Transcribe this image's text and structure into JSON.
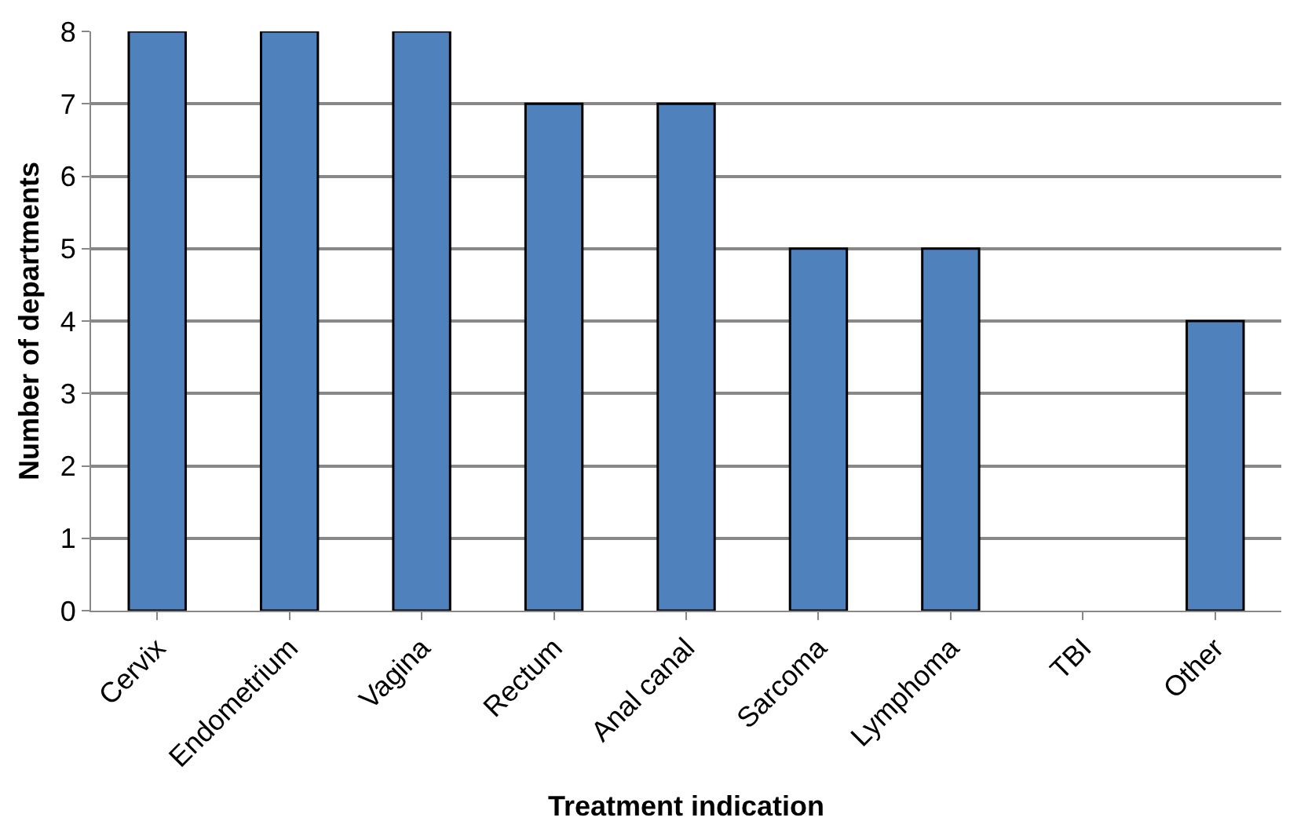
{
  "chart_data": {
    "type": "bar",
    "xlabel": "Treatment indication",
    "ylabel": "Number of departments",
    "categories": [
      "Cervix",
      "Endometrium",
      "Vagina",
      "Rectum",
      "Anal canal",
      "Sarcoma",
      "Lymphoma",
      "TBI",
      "Other"
    ],
    "values": [
      8,
      8,
      8,
      7,
      7,
      5,
      5,
      0,
      4
    ],
    "color": "#4f81bd",
    "ylim": [
      0,
      8
    ],
    "yticks": [
      0,
      1,
      2,
      3,
      4,
      5,
      6,
      7,
      8
    ],
    "grid": "y",
    "legend": false
  }
}
